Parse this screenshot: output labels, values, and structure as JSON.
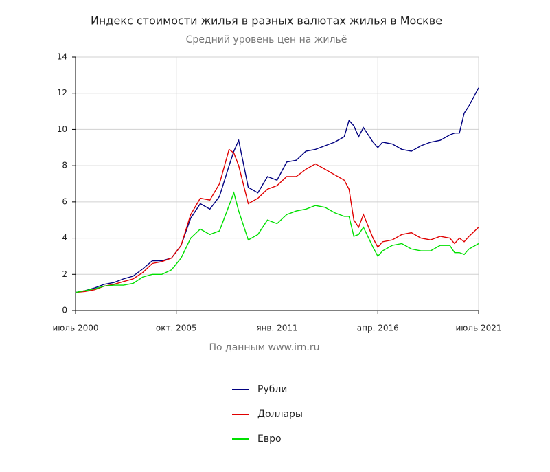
{
  "chart_data": {
    "type": "line",
    "title": "Индекс стоимости жилья в разных валютах жилья в Москве",
    "subtitle": "Средний уровень цен на жильё",
    "source": "По данным www.irn.ru",
    "x": [
      "2000-07",
      "2001-01",
      "2001-07",
      "2002-01",
      "2002-07",
      "2003-01",
      "2003-07",
      "2004-01",
      "2004-07",
      "2005-01",
      "2005-07",
      "2006-01",
      "2006-07",
      "2007-01",
      "2007-07",
      "2008-01",
      "2008-07",
      "2008-10",
      "2009-01",
      "2009-07",
      "2010-01",
      "2010-07",
      "2011-01",
      "2011-07",
      "2012-01",
      "2012-07",
      "2013-01",
      "2013-07",
      "2014-01",
      "2014-07",
      "2014-10",
      "2015-01",
      "2015-04",
      "2015-07",
      "2016-01",
      "2016-04",
      "2016-07",
      "2017-01",
      "2017-07",
      "2018-01",
      "2018-07",
      "2019-01",
      "2019-07",
      "2020-01",
      "2020-04",
      "2020-07",
      "2020-10",
      "2021-01",
      "2021-07"
    ],
    "series": [
      {
        "name": "Рубли",
        "color": "#000080",
        "values": [
          1.0,
          1.1,
          1.25,
          1.45,
          1.55,
          1.75,
          1.9,
          2.3,
          2.75,
          2.75,
          2.9,
          3.6,
          5.1,
          5.9,
          5.6,
          6.3,
          8.0,
          8.8,
          9.4,
          6.8,
          6.5,
          7.4,
          7.2,
          8.2,
          8.3,
          8.8,
          8.9,
          9.1,
          9.3,
          9.6,
          10.5,
          10.2,
          9.6,
          10.1,
          9.3,
          9.0,
          9.3,
          9.2,
          8.9,
          8.8,
          9.1,
          9.3,
          9.4,
          9.7,
          9.8,
          9.8,
          10.9,
          11.3,
          12.3
        ]
      },
      {
        "name": "Доллары",
        "color": "#e00000",
        "values": [
          1.0,
          1.05,
          1.15,
          1.35,
          1.45,
          1.6,
          1.75,
          2.1,
          2.6,
          2.7,
          2.9,
          3.6,
          5.3,
          6.2,
          6.1,
          7.0,
          8.9,
          8.7,
          8.0,
          5.9,
          6.2,
          6.7,
          6.9,
          7.4,
          7.4,
          7.8,
          8.1,
          7.8,
          7.5,
          7.2,
          6.7,
          5.0,
          4.6,
          5.3,
          4.0,
          3.5,
          3.8,
          3.9,
          4.2,
          4.3,
          4.0,
          3.9,
          4.1,
          4.0,
          3.7,
          4.0,
          3.8,
          4.1,
          4.6
        ]
      },
      {
        "name": "Евро",
        "color": "#00e000",
        "values": [
          1.0,
          1.1,
          1.2,
          1.35,
          1.4,
          1.4,
          1.5,
          1.85,
          2.0,
          2.0,
          2.25,
          2.9,
          4.0,
          4.5,
          4.2,
          4.4,
          5.8,
          6.5,
          5.5,
          3.9,
          4.2,
          5.0,
          4.8,
          5.3,
          5.5,
          5.6,
          5.8,
          5.7,
          5.4,
          5.2,
          5.2,
          4.1,
          4.2,
          4.6,
          3.5,
          3.0,
          3.3,
          3.6,
          3.7,
          3.4,
          3.3,
          3.3,
          3.6,
          3.6,
          3.2,
          3.2,
          3.1,
          3.4,
          3.7
        ]
      }
    ],
    "xlim": [
      "2000-07",
      "2021-07"
    ],
    "xticks": [
      {
        "value": "2000-07",
        "label": "июль 2000"
      },
      {
        "value": "2005-10",
        "label": "окт. 2005"
      },
      {
        "value": "2011-01",
        "label": "янв. 2011"
      },
      {
        "value": "2016-04",
        "label": "апр. 2016"
      },
      {
        "value": "2021-07",
        "label": "июль 2021"
      }
    ],
    "ylim": [
      0,
      14
    ],
    "yticks": [
      0,
      2,
      4,
      6,
      8,
      10,
      12,
      14
    ],
    "grid": true,
    "legend": "bottom"
  }
}
